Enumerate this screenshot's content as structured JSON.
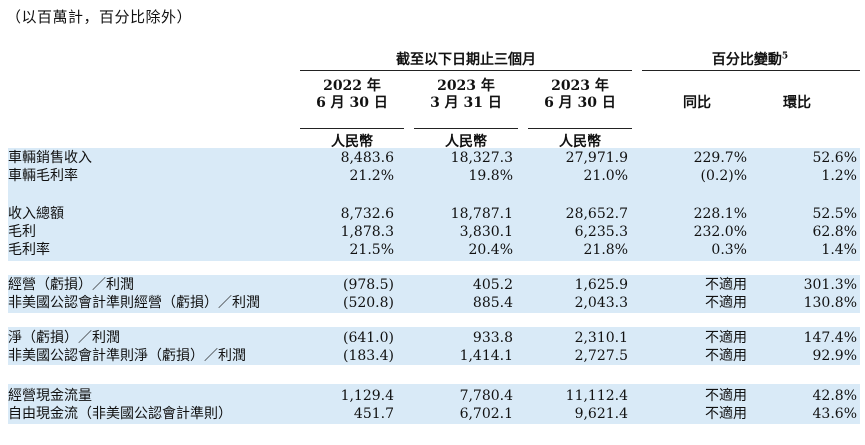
{
  "note": "（以百萬計，百分比除外）",
  "header": {
    "group1": "截至以下日期止三個月",
    "group2": "百分比變動",
    "group2_sup": "5",
    "columns": [
      {
        "line1": "2022 年",
        "line2": "6 月 30 日"
      },
      {
        "line1": "2023 年",
        "line2": "3 月 31 日"
      },
      {
        "line1": "2023 年",
        "line2": "6 月 30 日"
      }
    ],
    "yoy": "同比",
    "qoq": "環比",
    "currency": "人民幣"
  },
  "rows": [
    {
      "label": "車輛銷售收入",
      "v1": "8,483.6",
      "v2": "18,327.3",
      "v3": "27,971.9",
      "yoy": "229.7%",
      "qoq": "52.6%"
    },
    {
      "label": "車輛毛利率",
      "v1": "21.2%",
      "v2": "19.8%",
      "v3": "21.0%",
      "yoy": "(0.2)%",
      "qoq": "1.2%"
    },
    {
      "label": "收入總額",
      "v1": "8,732.6",
      "v2": "18,787.1",
      "v3": "28,652.7",
      "yoy": "228.1%",
      "qoq": "52.5%"
    },
    {
      "label": "毛利",
      "v1": "1,878.3",
      "v2": "3,830.1",
      "v3": "6,235.3",
      "yoy": "232.0%",
      "qoq": "62.8%"
    },
    {
      "label": "毛利率",
      "v1": "21.5%",
      "v2": "20.4%",
      "v3": "21.8%",
      "yoy": "0.3%",
      "qoq": "1.4%"
    },
    {
      "label": "經營（虧損）／利潤",
      "v1": "(978.5)",
      "v2": "405.2",
      "v3": "1,625.9",
      "yoy": "不適用",
      "qoq": "301.3%"
    },
    {
      "label": "非美國公認會計準則經營（虧損）／利潤",
      "v1": "(520.8)",
      "v2": "885.4",
      "v3": "2,043.3",
      "yoy": "不適用",
      "qoq": "130.8%"
    },
    {
      "label": "淨（虧損）／利潤",
      "v1": "(641.0)",
      "v2": "933.8",
      "v3": "2,310.1",
      "yoy": "不適用",
      "qoq": "147.4%"
    },
    {
      "label": "非美國公認會計準則淨（虧損）／利潤",
      "v1": "(183.4)",
      "v2": "1,414.1",
      "v3": "2,727.5",
      "yoy": "不適用",
      "qoq": "92.9%"
    },
    {
      "label": "經營現金流量",
      "v1": "1,129.4",
      "v2": "7,780.4",
      "v3": "11,112.4",
      "yoy": "不適用",
      "qoq": "42.8%"
    },
    {
      "label": "自由現金流（非美國公認會計準則）",
      "v1": "451.7",
      "v2": "6,702.1",
      "v3": "9,621.4",
      "yoy": "不適用",
      "qoq": "43.6%"
    }
  ]
}
